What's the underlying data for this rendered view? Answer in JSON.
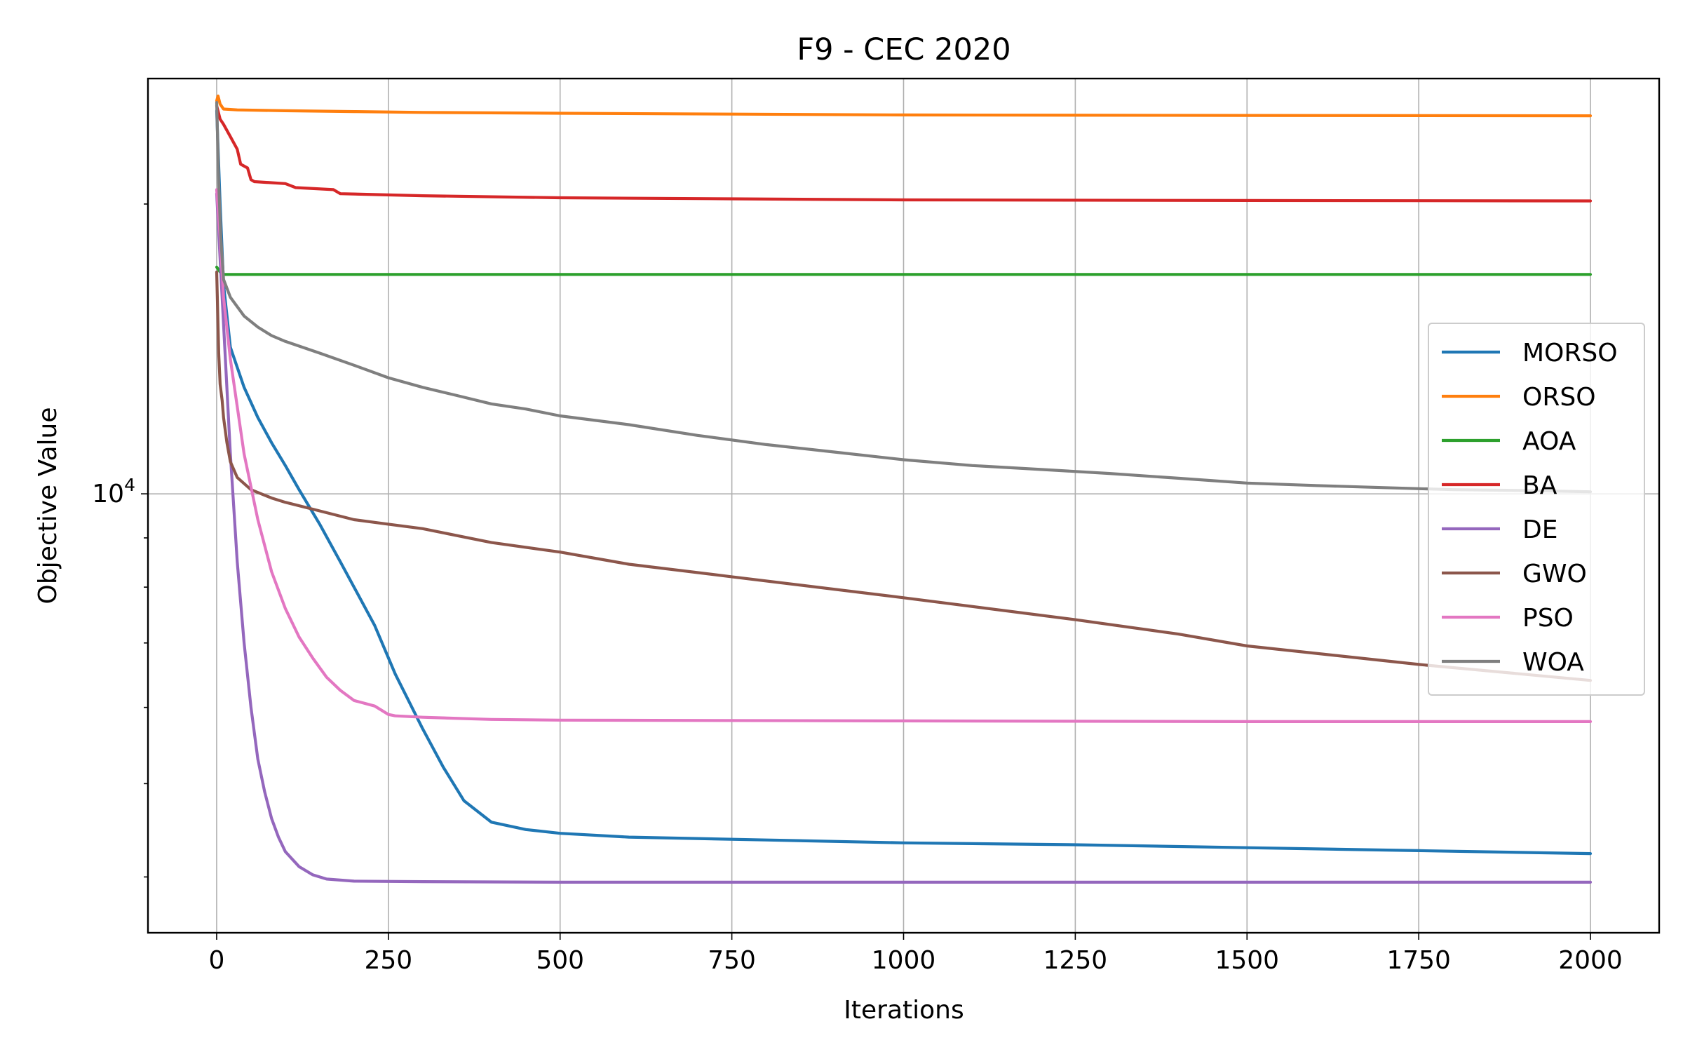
{
  "chart_data": {
    "type": "line",
    "title": "F9 - CEC 2020",
    "xlabel": "Iterations",
    "ylabel": "Objective Value",
    "xlim": [
      -100,
      2100
    ],
    "ylim": [
      3500,
      27000
    ],
    "yscale": "log",
    "grid": true,
    "legend_position": "center-right",
    "x_ticks": [
      0,
      250,
      500,
      750,
      1000,
      1250,
      1500,
      1750,
      2000
    ],
    "x_tick_labels": [
      "0",
      "250",
      "500",
      "750",
      "1000",
      "1250",
      "1500",
      "1750",
      "2000"
    ],
    "y_ticks_major": [
      10000
    ],
    "y_tick_base": "10",
    "y_tick_exp": "4",
    "series": [
      {
        "name": "MORSO",
        "color": "#1f77b4",
        "x": [
          0,
          5,
          10,
          20,
          40,
          60,
          80,
          100,
          120,
          150,
          180,
          200,
          230,
          260,
          300,
          330,
          360,
          400,
          450,
          500,
          600,
          800,
          1000,
          1250,
          1500,
          1750,
          2000
        ],
        "y": [
          25000,
          20000,
          16500,
          14200,
          12900,
          12000,
          11300,
          10700,
          10100,
          9300,
          8500,
          8000,
          7300,
          6500,
          5700,
          5200,
          4800,
          4560,
          4480,
          4440,
          4400,
          4370,
          4340,
          4320,
          4290,
          4260,
          4230
        ]
      },
      {
        "name": "ORSO",
        "color": "#ff7f0e",
        "x": [
          0,
          2,
          5,
          10,
          30,
          100,
          200,
          300,
          500,
          750,
          1000,
          1500,
          2000
        ],
        "y": [
          25600,
          25900,
          25400,
          25100,
          25050,
          25000,
          24950,
          24900,
          24850,
          24800,
          24750,
          24720,
          24700
        ]
      },
      {
        "name": "AOA",
        "color": "#2ca02c",
        "x": [
          0,
          5,
          10,
          2000
        ],
        "y": [
          17200,
          17000,
          16900,
          16900
        ]
      },
      {
        "name": "BA",
        "color": "#d62728",
        "x": [
          0,
          5,
          10,
          20,
          30,
          35,
          45,
          50,
          55,
          100,
          115,
          170,
          180,
          300,
          500,
          750,
          1000,
          1500,
          2000
        ],
        "y": [
          25300,
          24500,
          24200,
          23500,
          22800,
          22000,
          21800,
          21200,
          21100,
          21000,
          20800,
          20700,
          20500,
          20400,
          20300,
          20250,
          20200,
          20170,
          20150
        ]
      },
      {
        "name": "DE",
        "color": "#9467bd",
        "x": [
          0,
          10,
          20,
          30,
          40,
          50,
          60,
          70,
          80,
          90,
          100,
          120,
          140,
          160,
          200,
          300,
          500,
          2000
        ],
        "y": [
          20500,
          15000,
          11000,
          8500,
          7000,
          6000,
          5300,
          4900,
          4600,
          4400,
          4250,
          4100,
          4020,
          3980,
          3960,
          3955,
          3950,
          3950
        ]
      },
      {
        "name": "GWO",
        "color": "#8c564b",
        "x": [
          0,
          3,
          5,
          8,
          10,
          15,
          20,
          30,
          50,
          80,
          100,
          150,
          200,
          250,
          300,
          400,
          500,
          600,
          750,
          1000,
          1250,
          1400,
          1500,
          1750,
          2000
        ],
        "y": [
          17000,
          14000,
          13000,
          12500,
          12000,
          11300,
          10800,
          10400,
          10100,
          9900,
          9800,
          9600,
          9400,
          9300,
          9200,
          8900,
          8700,
          8450,
          8200,
          7800,
          7400,
          7150,
          6950,
          6650,
          6400
        ]
      },
      {
        "name": "PSO",
        "color": "#e377c2",
        "x": [
          0,
          5,
          10,
          20,
          40,
          60,
          80,
          100,
          120,
          140,
          160,
          180,
          200,
          230,
          250,
          260,
          300,
          400,
          500,
          1000,
          1500,
          2000
        ],
        "y": [
          20700,
          18500,
          16000,
          13800,
          11000,
          9400,
          8300,
          7600,
          7100,
          6750,
          6450,
          6250,
          6100,
          6020,
          5900,
          5880,
          5860,
          5830,
          5820,
          5810,
          5800,
          5800
        ]
      },
      {
        "name": "WOA",
        "color": "#7f7f7f",
        "x": [
          0,
          3,
          6,
          10,
          20,
          40,
          60,
          80,
          100,
          150,
          200,
          250,
          300,
          350,
          400,
          450,
          500,
          600,
          700,
          800,
          900,
          1000,
          1100,
          1200,
          1300,
          1400,
          1500,
          1600,
          1700,
          1800,
          1900,
          2000
        ],
        "y": [
          25500,
          21000,
          18500,
          16700,
          16000,
          15300,
          14900,
          14600,
          14400,
          14000,
          13600,
          13200,
          12900,
          12650,
          12400,
          12250,
          12050,
          11800,
          11500,
          11250,
          11050,
          10850,
          10700,
          10600,
          10500,
          10380,
          10260,
          10200,
          10150,
          10100,
          10080,
          10050
        ]
      }
    ]
  }
}
